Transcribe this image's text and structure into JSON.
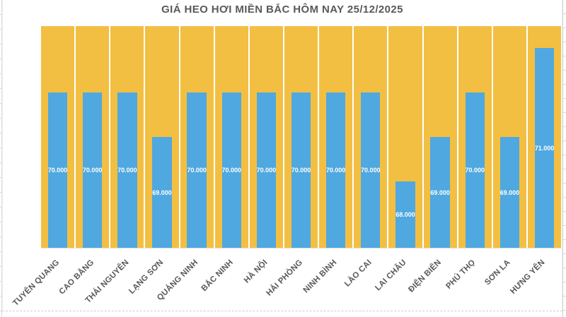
{
  "chart_data": {
    "type": "bar",
    "title": "GIÁ HEO HƠI MIỀN BẮC HÔM NAY 25/12/2025",
    "categories": [
      "TUYÊN QUANG",
      "CAO BẰNG",
      "THÁI NGUYÊN",
      "LẠNG SƠN",
      "QUẢNG NINH",
      "BẮC NINH",
      "HÀ NỘI",
      "HẢI PHÒNG",
      "NINH BÌNH",
      "LÀO CAI",
      "LAI CHÂU",
      "ĐIỆN BIÊN",
      "PHÚ THỌ",
      "SƠN LA",
      "HƯNG YÊN"
    ],
    "values": [
      70000,
      70000,
      70000,
      69000,
      70000,
      70000,
      70000,
      70000,
      70000,
      70000,
      68000,
      69000,
      70000,
      69000,
      71000
    ],
    "value_labels": [
      "70.000",
      "70.000",
      "70.000",
      "69.000",
      "70.000",
      "70.000",
      "70.000",
      "70.000",
      "70.000",
      "70.000",
      "68.000",
      "69.000",
      "70.000",
      "69.000",
      "71.000"
    ],
    "xlabel": "",
    "ylabel": "",
    "ylim": [
      66500,
      71500
    ],
    "grid": false,
    "legend": "none",
    "data_label_position": "center",
    "bar_color": "#4FA8E0",
    "background_bar_color": "#F2BF42",
    "data_label_color": "#FFFFFF",
    "axis_label_color": "#595959",
    "title_color": "#595959"
  }
}
